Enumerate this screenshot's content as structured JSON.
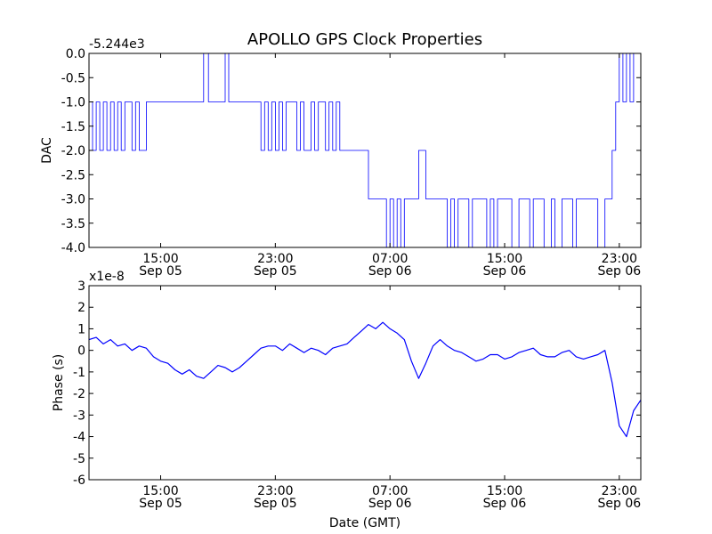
{
  "title": "APOLLO GPS Clock Properties",
  "xlabel": "Date (GMT)",
  "colors": {
    "line": "#0000ff",
    "axes": "#000000",
    "background": "#ffffff"
  },
  "chart_data": [
    {
      "type": "line",
      "ylabel": "DAC",
      "offset_label": "-5.244e3",
      "ylim": [
        -4.0,
        0.0
      ],
      "yticks": [
        0.0,
        -0.5,
        -1.0,
        -1.5,
        -2.0,
        -2.5,
        -3.0,
        -3.5,
        -4.0
      ],
      "ytick_labels": [
        "0.0",
        "-0.5",
        "-1.0",
        "-1.5",
        "-2.0",
        "-2.5",
        "-3.0",
        "-3.5",
        "-4.0"
      ],
      "xlim": [
        "2008-09-05T10:00",
        "2008-09-07T00:30"
      ],
      "xticks": [
        "2008-09-05T15:00",
        "2008-09-05T23:00",
        "2008-09-06T07:00",
        "2008-09-06T15:00",
        "2008-09-06T23:00"
      ],
      "xtick_labels": [
        [
          "15:00",
          "Sep 05"
        ],
        [
          "23:00",
          "Sep 05"
        ],
        [
          "07:00",
          "Sep 06"
        ],
        [
          "15:00",
          "Sep 06"
        ],
        [
          "23:00",
          "Sep 06"
        ]
      ],
      "series": [
        {
          "step": true,
          "x": [
            "2008-09-05T10:00",
            "2008-09-05T10:15",
            "2008-09-05T10:30",
            "2008-09-05T10:45",
            "2008-09-05T11:00",
            "2008-09-05T11:15",
            "2008-09-05T11:30",
            "2008-09-05T11:45",
            "2008-09-05T12:00",
            "2008-09-05T12:15",
            "2008-09-05T12:30",
            "2008-09-05T12:45",
            "2008-09-05T13:00",
            "2008-09-05T13:15",
            "2008-09-05T13:30",
            "2008-09-05T14:00",
            "2008-09-05T14:15",
            "2008-09-05T14:30",
            "2008-09-05T18:00",
            "2008-09-05T18:20",
            "2008-09-05T18:40",
            "2008-09-05T19:30",
            "2008-09-05T19:45",
            "2008-09-05T20:00",
            "2008-09-05T21:30",
            "2008-09-05T22:00",
            "2008-09-05T22:15",
            "2008-09-05T22:30",
            "2008-09-05T22:45",
            "2008-09-05T23:00",
            "2008-09-05T23:15",
            "2008-09-05T23:30",
            "2008-09-05T23:45",
            "2008-09-06T00:00",
            "2008-09-06T00:30",
            "2008-09-06T00:45",
            "2008-09-06T01:00",
            "2008-09-06T01:30",
            "2008-09-06T01:45",
            "2008-09-06T02:00",
            "2008-09-06T02:30",
            "2008-09-06T02:45",
            "2008-09-06T03:00",
            "2008-09-06T03:15",
            "2008-09-06T03:30",
            "2008-09-06T04:00",
            "2008-09-06T05:30",
            "2008-09-06T06:30",
            "2008-09-06T06:45",
            "2008-09-06T07:00",
            "2008-09-06T07:15",
            "2008-09-06T07:30",
            "2008-09-06T07:45",
            "2008-09-06T08:00",
            "2008-09-06T08:15",
            "2008-09-06T09:00",
            "2008-09-06T09:30",
            "2008-09-06T10:30",
            "2008-09-06T11:00",
            "2008-09-06T11:15",
            "2008-09-06T11:30",
            "2008-09-06T11:45",
            "2008-09-06T12:15",
            "2008-09-06T12:30",
            "2008-09-06T12:45",
            "2008-09-06T13:00",
            "2008-09-06T13:30",
            "2008-09-06T13:45",
            "2008-09-06T14:00",
            "2008-09-06T14:15",
            "2008-09-06T14:30",
            "2008-09-06T14:45",
            "2008-09-06T15:00",
            "2008-09-06T15:30",
            "2008-09-06T16:00",
            "2008-09-06T16:15",
            "2008-09-06T16:45",
            "2008-09-06T17:00",
            "2008-09-06T17:30",
            "2008-09-06T17:45",
            "2008-09-06T18:15",
            "2008-09-06T18:30",
            "2008-09-06T19:00",
            "2008-09-06T19:15",
            "2008-09-06T19:45",
            "2008-09-06T20:00",
            "2008-09-06T20:30",
            "2008-09-06T21:00",
            "2008-09-06T21:30",
            "2008-09-06T22:00",
            "2008-09-06T22:30",
            "2008-09-06T22:45",
            "2008-09-06T23:00",
            "2008-09-06T23:15",
            "2008-09-06T23:30",
            "2008-09-06T23:45",
            "2008-09-07T00:00",
            "2008-09-07T00:15"
          ],
          "values": [
            -1,
            -2,
            -1,
            -2,
            -1,
            -2,
            -1,
            -2,
            -1,
            -2,
            -1,
            -1,
            -2,
            -1,
            -2,
            -1,
            -1,
            -1,
            0,
            -1,
            -1,
            0,
            -1,
            -1,
            -1,
            -2,
            -1,
            -2,
            -1,
            -2,
            -1,
            -2,
            -1,
            -1,
            -2,
            -1,
            -2,
            -1,
            -2,
            -1,
            -2,
            -1,
            -2,
            -1,
            -2,
            -2,
            -3,
            -3,
            -4,
            -3,
            -4,
            -3,
            -4,
            -3,
            -3,
            -2,
            -3,
            -3,
            -4,
            -3,
            -4,
            -3,
            -3,
            -4,
            -3,
            -3,
            -3,
            -4,
            -3,
            -4,
            -3,
            -3,
            -3,
            -4,
            -3,
            -3,
            -4,
            -3,
            -3,
            -4,
            -3,
            -4,
            -3,
            -3,
            -4,
            -3,
            -3,
            -3,
            -4,
            -3,
            -2,
            -1,
            0,
            -1,
            0,
            -1,
            0,
            0
          ]
        }
      ]
    },
    {
      "type": "line",
      "ylabel": "Phase (s)",
      "offset_label": "x1e-8",
      "ylim": [
        -6,
        3
      ],
      "yticks": [
        3,
        2,
        1,
        0,
        -1,
        -2,
        -3,
        -4,
        -5,
        -6
      ],
      "ytick_labels": [
        "3",
        "2",
        "1",
        "0",
        "-1",
        "-2",
        "-3",
        "-4",
        "-5",
        "-6"
      ],
      "xlim": [
        "2008-09-05T10:00",
        "2008-09-07T00:30"
      ],
      "xticks": [
        "2008-09-05T15:00",
        "2008-09-05T23:00",
        "2008-09-06T07:00",
        "2008-09-06T15:00",
        "2008-09-06T23:00"
      ],
      "xtick_labels": [
        [
          "15:00",
          "Sep 05"
        ],
        [
          "23:00",
          "Sep 05"
        ],
        [
          "07:00",
          "Sep 06"
        ],
        [
          "15:00",
          "Sep 06"
        ],
        [
          "23:00",
          "Sep 06"
        ]
      ],
      "series": [
        {
          "x": [
            "2008-09-05T10:00",
            "2008-09-05T10:30",
            "2008-09-05T11:00",
            "2008-09-05T11:30",
            "2008-09-05T12:00",
            "2008-09-05T12:30",
            "2008-09-05T13:00",
            "2008-09-05T13:30",
            "2008-09-05T14:00",
            "2008-09-05T14:30",
            "2008-09-05T15:00",
            "2008-09-05T15:30",
            "2008-09-05T16:00",
            "2008-09-05T16:30",
            "2008-09-05T17:00",
            "2008-09-05T17:30",
            "2008-09-05T18:00",
            "2008-09-05T18:30",
            "2008-09-05T19:00",
            "2008-09-05T19:30",
            "2008-09-05T20:00",
            "2008-09-05T20:30",
            "2008-09-05T21:00",
            "2008-09-05T21:30",
            "2008-09-05T22:00",
            "2008-09-05T22:30",
            "2008-09-05T23:00",
            "2008-09-05T23:30",
            "2008-09-06T00:00",
            "2008-09-06T00:30",
            "2008-09-06T01:00",
            "2008-09-06T01:30",
            "2008-09-06T02:00",
            "2008-09-06T02:30",
            "2008-09-06T03:00",
            "2008-09-06T03:30",
            "2008-09-06T04:00",
            "2008-09-06T04:30",
            "2008-09-06T05:00",
            "2008-09-06T05:30",
            "2008-09-06T06:00",
            "2008-09-06T06:30",
            "2008-09-06T07:00",
            "2008-09-06T07:30",
            "2008-09-06T08:00",
            "2008-09-06T08:30",
            "2008-09-06T09:00",
            "2008-09-06T09:30",
            "2008-09-06T10:00",
            "2008-09-06T10:30",
            "2008-09-06T11:00",
            "2008-09-06T11:30",
            "2008-09-06T12:00",
            "2008-09-06T12:30",
            "2008-09-06T13:00",
            "2008-09-06T13:30",
            "2008-09-06T14:00",
            "2008-09-06T14:30",
            "2008-09-06T15:00",
            "2008-09-06T15:30",
            "2008-09-06T16:00",
            "2008-09-06T16:30",
            "2008-09-06T17:00",
            "2008-09-06T17:30",
            "2008-09-06T18:00",
            "2008-09-06T18:30",
            "2008-09-06T19:00",
            "2008-09-06T19:30",
            "2008-09-06T20:00",
            "2008-09-06T20:30",
            "2008-09-06T21:00",
            "2008-09-06T21:30",
            "2008-09-06T22:00",
            "2008-09-06T22:30",
            "2008-09-06T23:00",
            "2008-09-06T23:30",
            "2008-09-07T00:00",
            "2008-09-07T00:30"
          ],
          "values": [
            0.5,
            0.6,
            0.3,
            0.5,
            0.2,
            0.3,
            0.0,
            0.2,
            0.1,
            -0.3,
            -0.5,
            -0.6,
            -0.9,
            -1.1,
            -0.9,
            -1.2,
            -1.3,
            -1.0,
            -0.7,
            -0.8,
            -1.0,
            -0.8,
            -0.5,
            -0.2,
            0.1,
            0.2,
            0.2,
            0.0,
            0.3,
            0.1,
            -0.1,
            0.1,
            0.0,
            -0.2,
            0.1,
            0.2,
            0.3,
            0.6,
            0.9,
            1.2,
            1.0,
            1.3,
            1.0,
            0.8,
            0.5,
            -0.5,
            -1.3,
            -0.6,
            0.2,
            0.5,
            0.2,
            0.0,
            -0.1,
            -0.3,
            -0.5,
            -0.4,
            -0.2,
            -0.2,
            -0.4,
            -0.3,
            -0.1,
            0.0,
            0.1,
            -0.2,
            -0.3,
            -0.3,
            -0.1,
            0.0,
            -0.3,
            -0.4,
            -0.3,
            -0.2,
            0.0,
            -1.5,
            -3.5,
            -4.0,
            -2.8,
            -2.3
          ]
        }
      ]
    }
  ]
}
